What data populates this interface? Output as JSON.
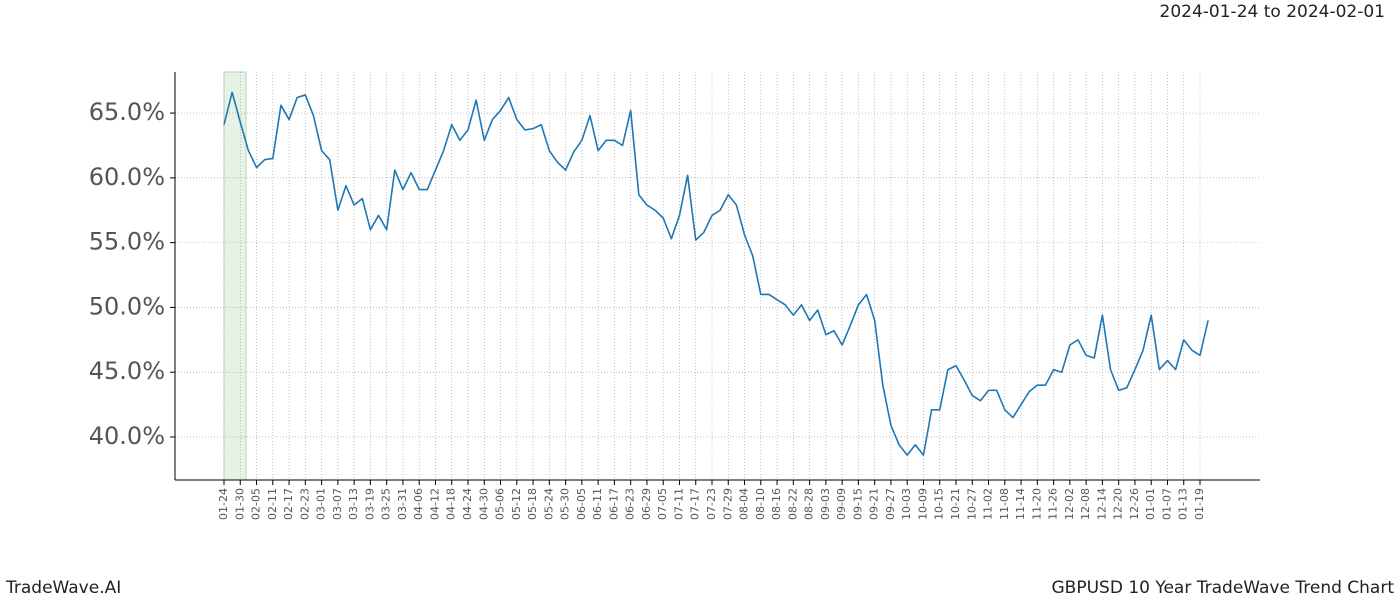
{
  "chart_data": {
    "type": "line",
    "header": "2024-01-24 to 2024-02-01",
    "brand": "TradeWave.AI",
    "title": "GBPUSD 10 Year TradeWave Trend Chart",
    "color": "#1f77b4",
    "grid": true,
    "categories": [
      "01-24",
      null,
      "01-30",
      null,
      "02-05",
      null,
      "02-11",
      null,
      "02-17",
      null,
      "02-23",
      null,
      "03-01",
      null,
      "03-07",
      null,
      "03-13",
      null,
      "03-19",
      null,
      "03-25",
      null,
      "03-31",
      null,
      "04-06",
      null,
      "04-12",
      null,
      "04-18",
      null,
      "04-24",
      null,
      "04-30",
      null,
      "05-06",
      null,
      "05-12",
      null,
      "05-18",
      null,
      "05-24",
      null,
      "05-30",
      null,
      "06-05",
      null,
      "06-11",
      null,
      "06-17",
      null,
      "06-23",
      null,
      "06-29",
      null,
      "07-05",
      null,
      "07-11",
      null,
      "07-17",
      null,
      "07-23",
      null,
      "07-29",
      null,
      "08-04",
      null,
      "08-10",
      null,
      "08-16",
      null,
      "08-22",
      null,
      "08-28",
      null,
      "09-03",
      null,
      "09-09",
      null,
      "09-15",
      null,
      "09-21",
      null,
      "09-27",
      null,
      "10-03",
      null,
      "10-09",
      null,
      "10-15",
      null,
      "10-21",
      null,
      "10-27",
      null,
      "11-02",
      null,
      "11-08",
      null,
      "11-14",
      null,
      "11-20",
      null,
      "11-26",
      null,
      "12-02",
      null,
      "12-08",
      null,
      "12-14",
      null,
      "12-20",
      null,
      "12-26",
      null,
      "01-01",
      null,
      "01-07",
      null,
      "01-13",
      null,
      "01-19",
      null
    ],
    "values": [
      64.1,
      66.6,
      64.3,
      62.1,
      60.8,
      61.4,
      61.5,
      65.6,
      64.5,
      66.2,
      66.4,
      64.8,
      62.1,
      61.4,
      57.5,
      59.4,
      57.9,
      58.4,
      56.0,
      57.1,
      56.0,
      60.6,
      59.1,
      60.4,
      59.1,
      59.1,
      60.6,
      62.1,
      64.1,
      62.9,
      63.7,
      66.0,
      62.9,
      64.5,
      65.2,
      66.2,
      64.5,
      63.7,
      63.8,
      64.1,
      62.1,
      61.2,
      60.6,
      62.0,
      62.9,
      64.8,
      62.1,
      62.9,
      62.9,
      62.5,
      65.2,
      58.7,
      57.9,
      57.5,
      56.9,
      55.3,
      57.1,
      60.2,
      55.2,
      55.8,
      57.1,
      57.5,
      58.7,
      57.9,
      55.6,
      54.0,
      51.0,
      51.0,
      50.6,
      50.2,
      49.4,
      50.2,
      49.0,
      49.8,
      47.9,
      48.2,
      47.1,
      48.6,
      50.2,
      51.0,
      49.0,
      44.0,
      40.9,
      39.4,
      38.6,
      39.4,
      38.6,
      42.1,
      42.1,
      45.2,
      45.5,
      44.4,
      43.2,
      42.8,
      43.6,
      43.6,
      42.1,
      41.5,
      42.5,
      43.5,
      44.0,
      44.0,
      45.2,
      45.0,
      47.1,
      47.5,
      46.3,
      46.1,
      49.4,
      45.2,
      43.6,
      43.8,
      45.2,
      46.7,
      49.4,
      45.2,
      45.9,
      45.2,
      47.5,
      46.7,
      46.3,
      49.0
    ],
    "ylim": [
      36.68,
      68.17
    ],
    "yticks": [
      {
        "value": 40,
        "label": "40.0%"
      },
      {
        "value": 45,
        "label": "45.0%"
      },
      {
        "value": 50,
        "label": "50.0%"
      },
      {
        "value": 55,
        "label": "55.0%"
      },
      {
        "value": 60,
        "label": "60.0%"
      },
      {
        "value": 65,
        "label": "65.0%"
      }
    ]
  }
}
